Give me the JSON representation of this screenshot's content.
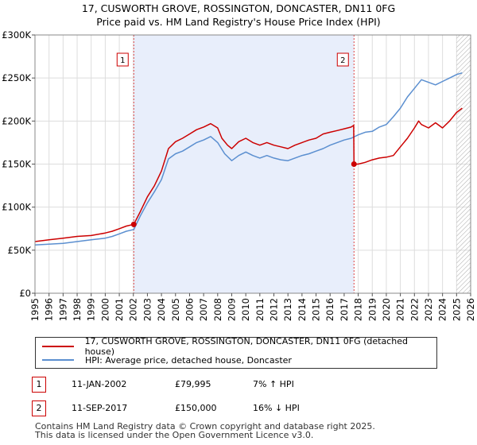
{
  "title": "17, CUSWORTH GROVE, ROSSINGTON, DONCASTER, DN11 0FG",
  "subtitle": "Price paid vs. HM Land Registry's House Price Index (HPI)",
  "colors": {
    "property": "#cc0000",
    "hpi": "#5b8fd0",
    "shade": "#e8eefb"
  },
  "chart_data": {
    "type": "line",
    "xlim": [
      1995,
      2026
    ],
    "ylim": [
      0,
      300000
    ],
    "yticks": [
      0,
      50000,
      100000,
      150000,
      200000,
      250000,
      300000
    ],
    "ytick_labels": [
      "£0",
      "£50K",
      "£100K",
      "£150K",
      "£200K",
      "£250K",
      "£300K"
    ],
    "xtick_labels": [
      "1995",
      "1996",
      "1997",
      "1998",
      "1999",
      "2000",
      "2001",
      "2002",
      "2003",
      "2004",
      "2005",
      "2006",
      "2007",
      "2008",
      "2009",
      "2010",
      "2011",
      "2012",
      "2013",
      "2014",
      "2015",
      "2016",
      "2017",
      "2018",
      "2019",
      "2020",
      "2021",
      "2022",
      "2023",
      "2024",
      "2025",
      "2026"
    ],
    "shaded_range": [
      2002.03,
      2017.7
    ],
    "hatched_from": 2025.0,
    "series": [
      {
        "name": "17, CUSWORTH GROVE, ROSSINGTON, DONCASTER, DN11 0FG (detached house)",
        "x": [
          1995,
          1996,
          1997,
          1998,
          1999,
          2000,
          2000.5,
          2001,
          2001.5,
          2002.03,
          2002.5,
          2003,
          2003.5,
          2004,
          2004.5,
          2005,
          2005.5,
          2006,
          2006.5,
          2007,
          2007.5,
          2008,
          2008.3,
          2008.7,
          2009,
          2009.5,
          2010,
          2010.5,
          2011,
          2011.5,
          2012,
          2012.5,
          2013,
          2013.5,
          2014,
          2014.5,
          2015,
          2015.5,
          2016,
          2016.5,
          2017,
          2017.5,
          2017.68,
          2017.7,
          2018,
          2018.5,
          2019,
          2019.5,
          2020,
          2020.5,
          2021,
          2021.5,
          2022,
          2022.3,
          2022.5,
          2023,
          2023.5,
          2024,
          2024.5,
          2025,
          2025.4
        ],
        "values": [
          60000,
          62000,
          64000,
          66000,
          67000,
          70000,
          72000,
          75000,
          78000,
          79995,
          95000,
          112000,
          125000,
          142000,
          168000,
          176000,
          180000,
          185000,
          190000,
          193000,
          197000,
          192000,
          180000,
          172000,
          168000,
          176000,
          180000,
          175000,
          172000,
          175000,
          172000,
          170000,
          168000,
          172000,
          175000,
          178000,
          180000,
          185000,
          187000,
          189000,
          191000,
          193000,
          195000,
          150000,
          150000,
          152000,
          155000,
          157000,
          158000,
          160000,
          170000,
          180000,
          192000,
          200000,
          196000,
          192000,
          198000,
          192000,
          200000,
          210000,
          215000
        ]
      },
      {
        "name": "HPI: Average price, detached house, Doncaster",
        "x": [
          1995,
          1996,
          1997,
          1998,
          1999,
          2000,
          2000.5,
          2001,
          2001.5,
          2002.03,
          2002.5,
          2003,
          2003.5,
          2004,
          2004.5,
          2005,
          2005.5,
          2006,
          2006.5,
          2007,
          2007.5,
          2008,
          2008.5,
          2009,
          2009.5,
          2010,
          2010.5,
          2011,
          2011.5,
          2012,
          2012.5,
          2013,
          2013.5,
          2014,
          2014.5,
          2015,
          2015.5,
          2016,
          2016.5,
          2017,
          2017.5,
          2018,
          2018.5,
          2019,
          2019.5,
          2020,
          2020.5,
          2021,
          2021.5,
          2022,
          2022.5,
          2023,
          2023.5,
          2024,
          2024.5,
          2025,
          2025.4
        ],
        "values": [
          56000,
          57000,
          58000,
          60000,
          62000,
          64000,
          66000,
          69000,
          72000,
          74000,
          90000,
          105000,
          118000,
          132000,
          156000,
          162000,
          165000,
          170000,
          175000,
          178000,
          182000,
          175000,
          162000,
          154000,
          160000,
          164000,
          160000,
          157000,
          160000,
          157000,
          155000,
          154000,
          157000,
          160000,
          162000,
          165000,
          168000,
          172000,
          175000,
          178000,
          180000,
          184000,
          187000,
          188000,
          193000,
          196000,
          205000,
          215000,
          228000,
          238000,
          248000,
          245000,
          242000,
          246000,
          250000,
          254000,
          256000
        ]
      }
    ],
    "sales": [
      {
        "id": "1",
        "date": "11-JAN-2002",
        "x": 2002.03,
        "price": 79995,
        "price_label": "£79,995",
        "hpi_diff": "7% ↑ HPI"
      },
      {
        "id": "2",
        "date": "11-SEP-2017",
        "x": 2017.7,
        "price": 150000,
        "price_label": "£150,000",
        "hpi_diff": "16% ↓ HPI"
      }
    ]
  },
  "legend": {
    "property_label": "17, CUSWORTH GROVE, ROSSINGTON, DONCASTER, DN11 0FG (detached house)",
    "hpi_label": "HPI: Average price, detached house, Doncaster"
  },
  "footer": {
    "line1": "Contains HM Land Registry data © Crown copyright and database right 2025.",
    "line2": "This data is licensed under the Open Government Licence v3.0."
  }
}
